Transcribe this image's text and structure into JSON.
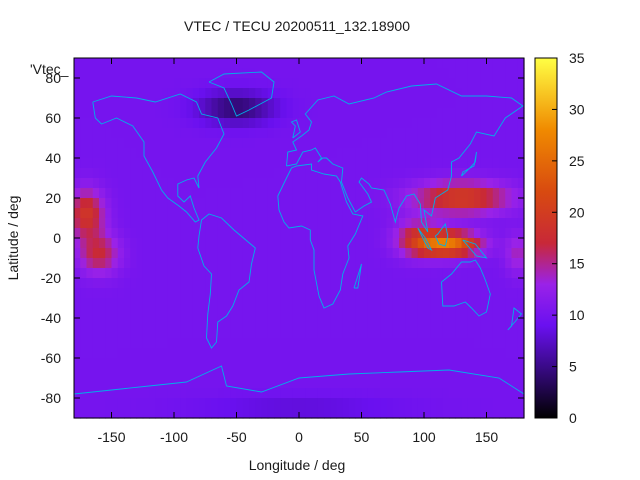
{
  "chart_data": {
    "type": "heatmap",
    "title": "VTEC / TECU 20200511_132.18900",
    "xlabel": "Longitude / deg",
    "ylabel": "Latitude / deg",
    "series_key_label": "'Vtec_",
    "xlim": [
      -180,
      180
    ],
    "ylim": [
      -90,
      90
    ],
    "x_ticks": [
      -150,
      -100,
      -50,
      0,
      50,
      100,
      150
    ],
    "y_ticks": [
      -80,
      -60,
      -40,
      -20,
      0,
      20,
      40,
      60,
      80
    ],
    "colorbar": {
      "min": 0,
      "max": 35,
      "ticks": [
        0,
        5,
        10,
        15,
        20,
        25,
        30,
        35
      ],
      "stops": [
        {
          "value": 0,
          "color": "#000000"
        },
        {
          "value": 5,
          "color": "#3a0a88"
        },
        {
          "value": 9,
          "color": "#6a10f0"
        },
        {
          "value": 13,
          "color": "#9a22e8"
        },
        {
          "value": 17,
          "color": "#c82838"
        },
        {
          "value": 22,
          "color": "#d84a10"
        },
        {
          "value": 28,
          "color": "#f08a00"
        },
        {
          "value": 35,
          "color": "#ffff44"
        }
      ]
    },
    "background_level": 10,
    "features": [
      {
        "lon": -170,
        "lat": 12,
        "sx": 14,
        "sy": 12,
        "amp": 9
      },
      {
        "lon": -160,
        "lat": -8,
        "sx": 16,
        "sy": 10,
        "amp": 7
      },
      {
        "lon": 120,
        "lat": -3,
        "sx": 24,
        "sy": 6,
        "amp": 16
      },
      {
        "lon": 130,
        "lat": 20,
        "sx": 38,
        "sy": 8,
        "amp": 10
      },
      {
        "lon": 95,
        "lat": 0,
        "sx": 18,
        "sy": 9,
        "amp": 7
      },
      {
        "lon": 175,
        "lat": -8,
        "sx": 10,
        "sy": 10,
        "amp": 4
      },
      {
        "lon": -50,
        "lat": 65,
        "sx": 30,
        "sy": 8,
        "amp": -6
      },
      {
        "lon": 0,
        "lat": -85,
        "sx": 80,
        "sy": 6,
        "amp": -2
      }
    ],
    "map_color": "#00b0e8"
  }
}
